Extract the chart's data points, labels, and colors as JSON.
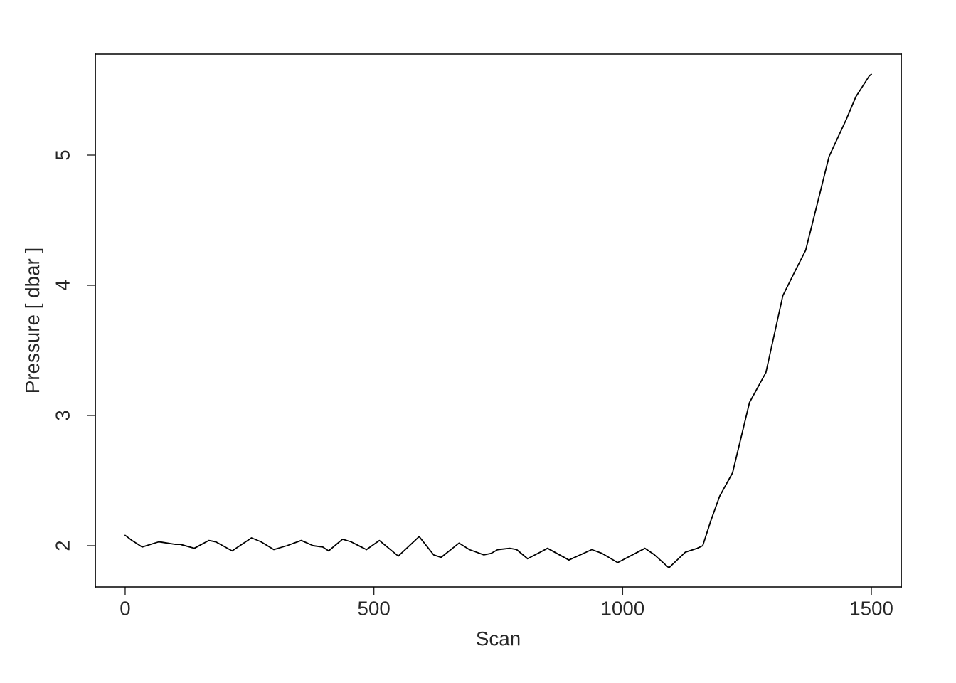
{
  "chart_data": {
    "type": "line",
    "xlabel": "Scan",
    "ylabel": "Pressure [ dbar ]",
    "xlim": [
      -60,
      1560
    ],
    "ylim": [
      1.683,
      5.776
    ],
    "xticks": [
      0,
      500,
      1000,
      1500
    ],
    "yticks": [
      2,
      3,
      4,
      5
    ],
    "grid": false,
    "legend": false,
    "series": [
      {
        "color": "#000000",
        "x": [
          0,
          14,
          34,
          68,
          101,
          111,
          139,
          168,
          182,
          215,
          254,
          273,
          299,
          325,
          354,
          378,
          397,
          409,
          437,
          454,
          485,
          511,
          549,
          591,
          620,
          635,
          671,
          692,
          721,
          735,
          749,
          773,
          787,
          809,
          849,
          892,
          938,
          959,
          990,
          1045,
          1064,
          1093,
          1126,
          1150,
          1161,
          1178,
          1195,
          1221,
          1255,
          1288,
          1322,
          1348,
          1368,
          1415,
          1449,
          1469,
          1496,
          1500
        ],
        "values": [
          2.08,
          2.04,
          1.99,
          2.03,
          2.01,
          2.01,
          1.98,
          2.04,
          2.03,
          1.96,
          2.06,
          2.03,
          1.97,
          2.0,
          2.04,
          2.0,
          1.99,
          1.96,
          2.05,
          2.03,
          1.97,
          2.04,
          1.92,
          2.07,
          1.93,
          1.91,
          2.02,
          1.97,
          1.93,
          1.94,
          1.97,
          1.98,
          1.97,
          1.9,
          1.98,
          1.89,
          1.97,
          1.94,
          1.87,
          1.98,
          1.93,
          1.83,
          1.95,
          1.98,
          2.0,
          2.2,
          2.38,
          2.56,
          3.1,
          3.33,
          3.92,
          4.12,
          4.27,
          4.99,
          5.27,
          5.45,
          5.61,
          5.62
        ]
      }
    ]
  }
}
